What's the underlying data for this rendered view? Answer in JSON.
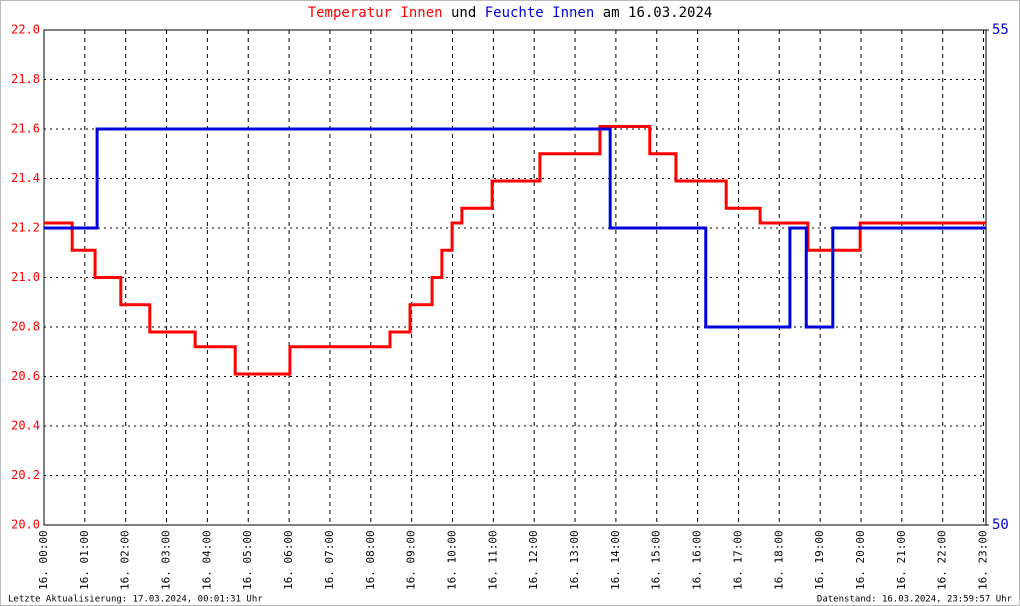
{
  "chart_data": {
    "type": "line",
    "title": [
      "Temperatur Innen",
      "und",
      "Feuchte Innen",
      "am 16.03.2024"
    ],
    "footer_left": "Letzte Aktualisierung: 17.03.2024, 00:01:31 Uhr",
    "footer_right": "Datenstand: 16.03.2024, 23:59:57 Uhr",
    "grid": true,
    "xlim": [
      0,
      23.06
    ],
    "xticks": [
      {
        "value": 0,
        "label": "16. 00:00"
      },
      {
        "value": 1,
        "label": "16. 01:00"
      },
      {
        "value": 2,
        "label": "16. 02:00"
      },
      {
        "value": 3,
        "label": "16. 03:00"
      },
      {
        "value": 4,
        "label": "16. 04:00"
      },
      {
        "value": 5,
        "label": "16. 05:00"
      },
      {
        "value": 6,
        "label": "16. 06:00"
      },
      {
        "value": 7,
        "label": "16. 07:00"
      },
      {
        "value": 8,
        "label": "16. 08:00"
      },
      {
        "value": 9,
        "label": "16. 09:00"
      },
      {
        "value": 10,
        "label": "16. 10:00"
      },
      {
        "value": 11,
        "label": "16. 11:00"
      },
      {
        "value": 12,
        "label": "16. 12:00"
      },
      {
        "value": 13,
        "label": "16. 13:00"
      },
      {
        "value": 14,
        "label": "16. 14:00"
      },
      {
        "value": 15,
        "label": "16. 15:00"
      },
      {
        "value": 16,
        "label": "16. 16:00"
      },
      {
        "value": 17,
        "label": "16. 17:00"
      },
      {
        "value": 18,
        "label": "16. 18:00"
      },
      {
        "value": 19,
        "label": "16. 19:00"
      },
      {
        "value": 20,
        "label": "16. 20:00"
      },
      {
        "value": 21,
        "label": "16. 21:00"
      },
      {
        "value": 22,
        "label": "16. 22:00"
      },
      {
        "value": 23,
        "label": "16. 23:00"
      }
    ],
    "ylim": [
      20,
      22
    ],
    "yticks": [
      {
        "value": 20,
        "label": "20.0"
      },
      20.2,
      20.4,
      20.6,
      20.8,
      {
        "value": 21,
        "label": "21.0"
      },
      21.2,
      21.4,
      21.6,
      21.8,
      {
        "value": 22,
        "label": "22.0"
      }
    ],
    "y2lim": [
      50,
      55
    ],
    "y2ticks": [
      50,
      55
    ],
    "series": [
      {
        "name": "Temperatur Innen",
        "color": "#ff0000",
        "x": [
          0,
          0.69,
          0.69,
          1.25,
          1.25,
          1.88,
          1.88,
          2.59,
          2.59,
          3.7,
          3.7,
          4.68,
          4.68,
          6.02,
          6.02,
          8.47,
          8.47,
          8.96,
          8.96,
          9.5,
          9.5,
          9.74,
          9.74,
          9.99,
          9.99,
          10.23,
          10.23,
          10.97,
          10.97,
          12.14,
          12.14,
          13.61,
          13.61,
          14.83,
          14.83,
          15.47,
          15.47,
          16.7,
          16.7,
          17.53,
          17.53,
          18.7,
          18.7,
          19.98,
          19.98,
          23.06
        ],
        "values": [
          21.22,
          21.22,
          21.11,
          21.11,
          21.0,
          21.0,
          20.89,
          20.89,
          20.78,
          20.78,
          20.72,
          20.72,
          20.61,
          20.61,
          20.72,
          20.72,
          20.78,
          20.78,
          20.89,
          20.89,
          21.0,
          21.0,
          21.11,
          21.11,
          21.22,
          21.22,
          21.28,
          21.28,
          21.39,
          21.39,
          21.5,
          21.5,
          21.61,
          21.61,
          21.5,
          21.5,
          21.39,
          21.39,
          21.28,
          21.28,
          21.22,
          21.22,
          21.11,
          21.11,
          21.22,
          21.22
        ]
      },
      {
        "name": "Feuchte Innen",
        "color": "#0000dd",
        "axis": "y2",
        "x": [
          0,
          1.3,
          1.3,
          13.86,
          13.86,
          16.2,
          16.2,
          18.26,
          18.26,
          18.66,
          18.66,
          19.31,
          19.31,
          23.06
        ],
        "values": [
          53,
          53,
          54,
          54,
          53,
          53,
          52,
          52,
          53,
          53,
          52,
          52,
          53,
          53
        ]
      }
    ]
  }
}
